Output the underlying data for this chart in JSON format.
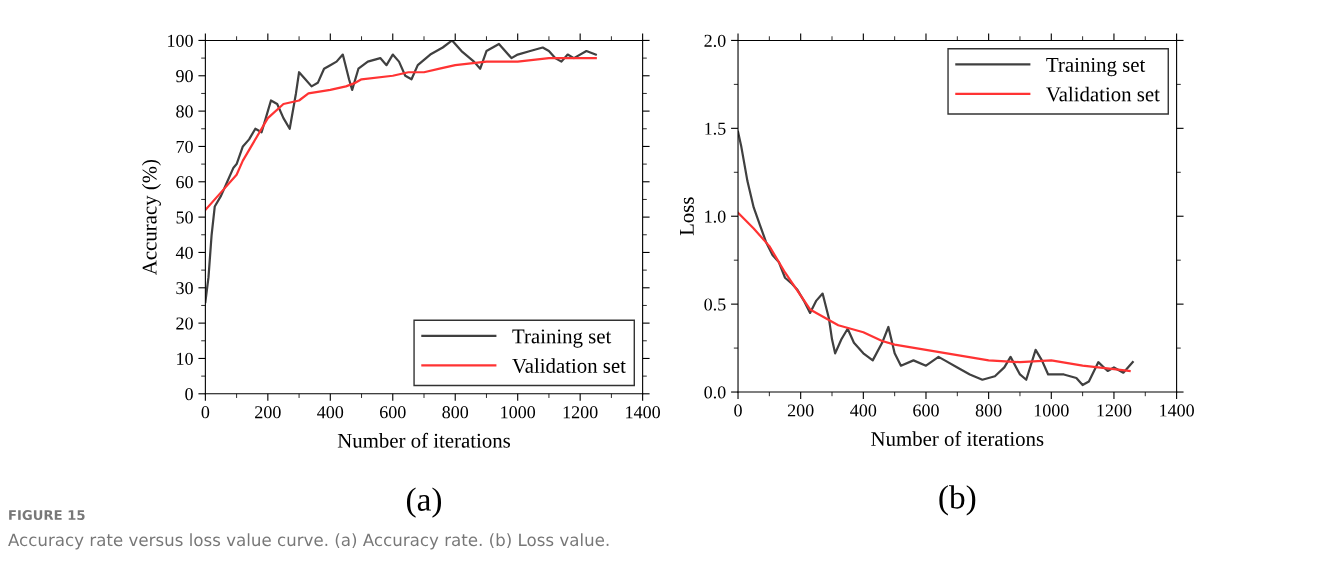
{
  "chart_data": [
    {
      "type": "line",
      "title": "(a)",
      "xlabel": "Number of iterations",
      "ylabel": "Accuracy (%)",
      "xlim": [
        0,
        1400
      ],
      "xticks": [
        0,
        200,
        400,
        600,
        800,
        1000,
        1200,
        1400
      ],
      "ylim": [
        0,
        100
      ],
      "yticks": [
        0,
        10,
        20,
        30,
        40,
        50,
        60,
        70,
        80,
        90,
        100
      ],
      "legend": "bottom right",
      "grid": false,
      "annotations": [
        "FIGURE 15",
        "Accuracy rate versus loss value curve. (a) Accuracy rate. (b) Loss value."
      ],
      "series": [
        {
          "name": "Training set",
          "color": "#404040",
          "x": [
            0,
            10,
            20,
            30,
            50,
            70,
            90,
            100,
            120,
            140,
            160,
            180,
            200,
            210,
            230,
            250,
            270,
            290,
            300,
            320,
            340,
            360,
            380,
            400,
            420,
            440,
            460,
            470,
            490,
            520,
            560,
            580,
            600,
            620,
            640,
            660,
            680,
            720,
            760,
            790,
            820,
            860,
            880,
            900,
            940,
            980,
            1000,
            1040,
            1080,
            1100,
            1120,
            1140,
            1160,
            1180,
            1220,
            1250
          ],
          "values": [
            26,
            33,
            45,
            53,
            56,
            60,
            64,
            65,
            70,
            72,
            75,
            74,
            80,
            83,
            82,
            78,
            75,
            85,
            91,
            89,
            87,
            88,
            92,
            93,
            94,
            96,
            89,
            86,
            92,
            94,
            95,
            93,
            96,
            94,
            90,
            89,
            93,
            96,
            98,
            100,
            97,
            94,
            92,
            97,
            99,
            95,
            96,
            97,
            98,
            97,
            95,
            94,
            96,
            95,
            97,
            96
          ]
        },
        {
          "name": "Validation set",
          "color": "#ff3333",
          "x": [
            0,
            50,
            100,
            120,
            200,
            250,
            300,
            330,
            400,
            450,
            480,
            500,
            600,
            650,
            700,
            750,
            800,
            900,
            1000,
            1100,
            1200,
            1250
          ],
          "values": [
            52,
            57,
            62,
            66,
            78,
            82,
            83,
            85,
            86,
            87,
            88,
            89,
            90,
            91,
            91,
            92,
            93,
            94,
            94,
            95,
            95,
            95
          ]
        }
      ]
    },
    {
      "type": "line",
      "title": "(b)",
      "xlabel": "Number of iterations",
      "ylabel": "Loss",
      "xlim": [
        0,
        1400
      ],
      "xticks": [
        0,
        200,
        400,
        600,
        800,
        1000,
        1200,
        1400
      ],
      "ylim": [
        0,
        2.0
      ],
      "yticks": [
        {
          "value": 0,
          "label": "0.0"
        },
        0.5,
        {
          "value": 1,
          "label": "1.0"
        },
        1.5,
        {
          "value": 2,
          "label": "2.0"
        }
      ],
      "legend": "top right",
      "grid": false,
      "series": [
        {
          "name": "Training set",
          "color": "#404040",
          "x": [
            0,
            10,
            30,
            50,
            70,
            90,
            110,
            130,
            150,
            170,
            190,
            210,
            230,
            250,
            270,
            290,
            300,
            310,
            330,
            350,
            370,
            400,
            430,
            460,
            480,
            500,
            520,
            560,
            600,
            640,
            660,
            700,
            740,
            780,
            820,
            850,
            870,
            900,
            920,
            950,
            970,
            990,
            1040,
            1080,
            1100,
            1120,
            1150,
            1180,
            1200,
            1230,
            1260
          ],
          "values": [
            1.48,
            1.4,
            1.2,
            1.05,
            0.95,
            0.85,
            0.78,
            0.74,
            0.65,
            0.62,
            0.58,
            0.52,
            0.45,
            0.52,
            0.56,
            0.42,
            0.3,
            0.22,
            0.3,
            0.36,
            0.28,
            0.22,
            0.18,
            0.28,
            0.37,
            0.22,
            0.15,
            0.18,
            0.15,
            0.2,
            0.18,
            0.14,
            0.1,
            0.07,
            0.09,
            0.14,
            0.2,
            0.1,
            0.07,
            0.24,
            0.18,
            0.1,
            0.1,
            0.08,
            0.04,
            0.06,
            0.17,
            0.12,
            0.14,
            0.11,
            0.17
          ]
        },
        {
          "name": "Validation set",
          "color": "#ff3333",
          "x": [
            0,
            50,
            100,
            150,
            230,
            280,
            320,
            400,
            460,
            500,
            600,
            700,
            800,
            900,
            1000,
            1100,
            1200,
            1250
          ],
          "values": [
            1.02,
            0.93,
            0.83,
            0.68,
            0.47,
            0.42,
            0.38,
            0.34,
            0.29,
            0.27,
            0.24,
            0.21,
            0.18,
            0.17,
            0.18,
            0.15,
            0.13,
            0.12
          ]
        }
      ]
    }
  ]
}
